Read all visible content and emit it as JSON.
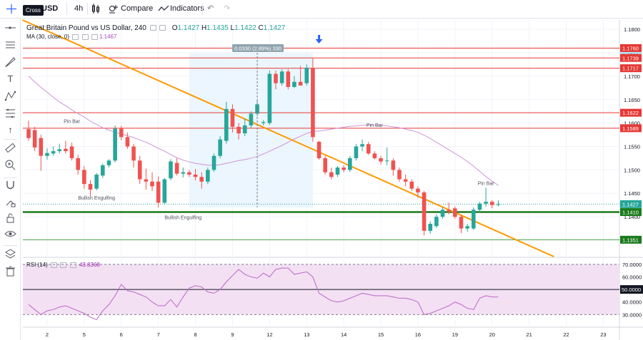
{
  "topbar": {
    "tooltip": "Cross",
    "symbol": "USD",
    "interval": "4h",
    "compare_label": "Compare",
    "indicators_label": "Indicators"
  },
  "legend": {
    "title": "Great Britain Pound vs US Dollar, 240",
    "o_label": "O",
    "o": "1.1427",
    "h_label": "H",
    "h": "1.1435",
    "l_label": "L",
    "l": "1.1422",
    "c_label": "C",
    "c": "1.1427",
    "ma_label": "MA (30, close, 0)",
    "ma_value": "1.1467",
    "rsi_label": "RSI (14)",
    "rsi_value": "43.8368"
  },
  "colors": {
    "up": "#26a69a",
    "down": "#ef5350",
    "ma": "#ce93d8",
    "trendline": "#ff9800",
    "resistance": "#e53935",
    "support": "#1b7a1b",
    "rsi_line": "#ba68c8",
    "rsi_fill": "#f3e0f3",
    "range_box": "#e3f2fd"
  },
  "chart_data": {
    "type": "candlestick",
    "ylim": [
      1.1315,
      1.182
    ],
    "price_ticks": [
      "1.1800",
      "1.1750",
      "1.1700",
      "1.1650",
      "1.1600",
      "1.1550",
      "1.1500",
      "1.1450",
      "1.1400"
    ],
    "date_ticks": [
      {
        "label": "2",
        "bar": 3
      },
      {
        "label": "5",
        "bar": 9
      },
      {
        "label": "6",
        "bar": 15
      },
      {
        "label": "7",
        "bar": 21
      },
      {
        "label": "8",
        "bar": 27
      },
      {
        "label": "9",
        "bar": 33
      },
      {
        "label": "12",
        "bar": 39
      },
      {
        "label": "13",
        "bar": 45
      },
      {
        "label": "14",
        "bar": 51
      },
      {
        "label": "15",
        "bar": 57
      },
      {
        "label": "16",
        "bar": 63
      },
      {
        "label": "19",
        "bar": 69
      },
      {
        "label": "20",
        "bar": 75
      },
      {
        "label": "21",
        "bar": 81
      },
      {
        "label": "22",
        "bar": 87
      },
      {
        "label": "23",
        "bar": 93
      }
    ],
    "candles": [
      {
        "o": 1.1587,
        "h": 1.1605,
        "l": 1.1562,
        "c": 1.1568
      },
      {
        "o": 1.1585,
        "h": 1.1592,
        "l": 1.154,
        "c": 1.1548
      },
      {
        "o": 1.1568,
        "h": 1.1575,
        "l": 1.1498,
        "c": 1.153
      },
      {
        "o": 1.153,
        "h": 1.1546,
        "l": 1.1522,
        "c": 1.1536
      },
      {
        "o": 1.1535,
        "h": 1.155,
        "l": 1.153,
        "c": 1.154
      },
      {
        "o": 1.154,
        "h": 1.1556,
        "l": 1.1535,
        "c": 1.1544
      },
      {
        "o": 1.1545,
        "h": 1.1562,
        "l": 1.1535,
        "c": 1.154
      },
      {
        "o": 1.155,
        "h": 1.1558,
        "l": 1.152,
        "c": 1.1525
      },
      {
        "o": 1.1525,
        "h": 1.1532,
        "l": 1.149,
        "c": 1.15
      },
      {
        "o": 1.15,
        "h": 1.1508,
        "l": 1.146,
        "c": 1.147
      },
      {
        "o": 1.147,
        "h": 1.1478,
        "l": 1.1445,
        "c": 1.1458
      },
      {
        "o": 1.146,
        "h": 1.1493,
        "l": 1.1456,
        "c": 1.149
      },
      {
        "o": 1.1488,
        "h": 1.1513,
        "l": 1.1483,
        "c": 1.151
      },
      {
        "o": 1.151,
        "h": 1.1523,
        "l": 1.1505,
        "c": 1.152
      },
      {
        "o": 1.152,
        "h": 1.1595,
        "l": 1.1516,
        "c": 1.1588
      },
      {
        "o": 1.1588,
        "h": 1.1594,
        "l": 1.1563,
        "c": 1.157
      },
      {
        "o": 1.157,
        "h": 1.158,
        "l": 1.1545,
        "c": 1.155
      },
      {
        "o": 1.155,
        "h": 1.1556,
        "l": 1.1505,
        "c": 1.152
      },
      {
        "o": 1.152,
        "h": 1.153,
        "l": 1.147,
        "c": 1.148
      },
      {
        "o": 1.148,
        "h": 1.1503,
        "l": 1.1458,
        "c": 1.1475
      },
      {
        "o": 1.1475,
        "h": 1.1495,
        "l": 1.1455,
        "c": 1.1465
      },
      {
        "o": 1.1475,
        "h": 1.1486,
        "l": 1.142,
        "c": 1.143
      },
      {
        "o": 1.143,
        "h": 1.1483,
        "l": 1.1426,
        "c": 1.148
      },
      {
        "o": 1.1482,
        "h": 1.1523,
        "l": 1.1478,
        "c": 1.1518
      },
      {
        "o": 1.1515,
        "h": 1.1525,
        "l": 1.1488,
        "c": 1.1492
      },
      {
        "o": 1.1492,
        "h": 1.1505,
        "l": 1.1484,
        "c": 1.1495
      },
      {
        "o": 1.1495,
        "h": 1.15,
        "l": 1.1485,
        "c": 1.149
      },
      {
        "o": 1.149,
        "h": 1.1502,
        "l": 1.1478,
        "c": 1.1485
      },
      {
        "o": 1.1485,
        "h": 1.1495,
        "l": 1.146,
        "c": 1.1475
      },
      {
        "o": 1.1475,
        "h": 1.1505,
        "l": 1.147,
        "c": 1.15
      },
      {
        "o": 1.15,
        "h": 1.1535,
        "l": 1.1496,
        "c": 1.153
      },
      {
        "o": 1.153,
        "h": 1.1572,
        "l": 1.1525,
        "c": 1.1565
      },
      {
        "o": 1.1562,
        "h": 1.1645,
        "l": 1.1556,
        "c": 1.163
      },
      {
        "o": 1.163,
        "h": 1.164,
        "l": 1.158,
        "c": 1.1592
      },
      {
        "o": 1.1592,
        "h": 1.16,
        "l": 1.1565,
        "c": 1.1578
      },
      {
        "o": 1.1578,
        "h": 1.161,
        "l": 1.1572,
        "c": 1.1595
      },
      {
        "o": 1.1595,
        "h": 1.1625,
        "l": 1.159,
        "c": 1.162
      },
      {
        "o": 1.162,
        "h": 1.1648,
        "l": 1.1615,
        "c": 1.164
      },
      {
        "o": 1.16,
        "h": 1.1606,
        "l": 1.1595,
        "c": 1.1602
      },
      {
        "o": 1.16,
        "h": 1.1712,
        "l": 1.1596,
        "c": 1.1705
      },
      {
        "o": 1.1705,
        "h": 1.1712,
        "l": 1.1672,
        "c": 1.1685
      },
      {
        "o": 1.1685,
        "h": 1.1715,
        "l": 1.168,
        "c": 1.171
      },
      {
        "o": 1.171,
        "h": 1.1715,
        "l": 1.1672,
        "c": 1.1677
      },
      {
        "o": 1.1677,
        "h": 1.17,
        "l": 1.1675,
        "c": 1.1688
      },
      {
        "o": 1.1688,
        "h": 1.1722,
        "l": 1.168,
        "c": 1.168
      },
      {
        "o": 1.1685,
        "h": 1.1725,
        "l": 1.168,
        "c": 1.1718
      },
      {
        "o": 1.1718,
        "h": 1.1738,
        "l": 1.156,
        "c": 1.157
      },
      {
        "o": 1.156,
        "h": 1.1562,
        "l": 1.1522,
        "c": 1.1525
      },
      {
        "o": 1.1525,
        "h": 1.153,
        "l": 1.149,
        "c": 1.1495
      },
      {
        "o": 1.1495,
        "h": 1.1505,
        "l": 1.148,
        "c": 1.1485
      },
      {
        "o": 1.149,
        "h": 1.1508,
        "l": 1.1485,
        "c": 1.1505
      },
      {
        "o": 1.1505,
        "h": 1.151,
        "l": 1.1495,
        "c": 1.15
      },
      {
        "o": 1.15,
        "h": 1.153,
        "l": 1.1496,
        "c": 1.1525
      },
      {
        "o": 1.1525,
        "h": 1.1555,
        "l": 1.152,
        "c": 1.155
      },
      {
        "o": 1.155,
        "h": 1.1565,
        "l": 1.154,
        "c": 1.1555
      },
      {
        "o": 1.1555,
        "h": 1.156,
        "l": 1.1532,
        "c": 1.1535
      },
      {
        "o": 1.1535,
        "h": 1.154,
        "l": 1.1522,
        "c": 1.1525
      },
      {
        "o": 1.1525,
        "h": 1.153,
        "l": 1.1512,
        "c": 1.1518
      },
      {
        "o": 1.152,
        "h": 1.1548,
        "l": 1.151,
        "c": 1.152
      },
      {
        "o": 1.152,
        "h": 1.1525,
        "l": 1.1488,
        "c": 1.15
      },
      {
        "o": 1.15,
        "h": 1.1505,
        "l": 1.1475,
        "c": 1.148
      },
      {
        "o": 1.148,
        "h": 1.149,
        "l": 1.1465,
        "c": 1.1475
      },
      {
        "o": 1.1475,
        "h": 1.148,
        "l": 1.1455,
        "c": 1.146
      },
      {
        "o": 1.146,
        "h": 1.1465,
        "l": 1.144,
        "c": 1.1452
      },
      {
        "o": 1.1452,
        "h": 1.1455,
        "l": 1.136,
        "c": 1.137
      },
      {
        "o": 1.137,
        "h": 1.139,
        "l": 1.1364,
        "c": 1.1385
      },
      {
        "o": 1.138,
        "h": 1.1405,
        "l": 1.1376,
        "c": 1.14
      },
      {
        "o": 1.14,
        "h": 1.142,
        "l": 1.1396,
        "c": 1.1415
      },
      {
        "o": 1.1415,
        "h": 1.143,
        "l": 1.1405,
        "c": 1.141
      },
      {
        "o": 1.1418,
        "h": 1.1422,
        "l": 1.1396,
        "c": 1.14
      },
      {
        "o": 1.14,
        "h": 1.1405,
        "l": 1.1365,
        "c": 1.1375
      },
      {
        "o": 1.1375,
        "h": 1.1385,
        "l": 1.1368,
        "c": 1.138
      },
      {
        "o": 1.1375,
        "h": 1.142,
        "l": 1.1372,
        "c": 1.1415
      },
      {
        "o": 1.1415,
        "h": 1.1432,
        "l": 1.141,
        "c": 1.1428
      },
      {
        "o": 1.1428,
        "h": 1.1462,
        "l": 1.1422,
        "c": 1.1432
      },
      {
        "o": 1.1432,
        "h": 1.1435,
        "l": 1.1418,
        "c": 1.1425
      },
      {
        "o": 1.1427,
        "h": 1.1435,
        "l": 1.1422,
        "c": 1.1427
      }
    ],
    "ma": [
      1.17,
      1.1688,
      1.1676,
      1.1666,
      1.1655,
      1.1645,
      1.1637,
      1.1628,
      1.162,
      1.1613,
      1.1604,
      1.1597,
      1.159,
      1.1585,
      1.158,
      1.1577,
      1.1573,
      1.1569,
      1.1564,
      1.1559,
      1.1553,
      1.1546,
      1.154,
      1.1533,
      1.1526,
      1.1521,
      1.1517,
      1.1514,
      1.1512,
      1.151,
      1.151,
      1.1511,
      1.1514,
      1.1517,
      1.152,
      1.1522,
      1.1525,
      1.1529,
      1.1534,
      1.154,
      1.1546,
      1.1552,
      1.1559,
      1.1566,
      1.1572,
      1.1578,
      1.1582,
      1.1583,
      1.1585,
      1.1587,
      1.1589,
      1.1591,
      1.1593,
      1.1594,
      1.1595,
      1.1596,
      1.1596,
      1.1595,
      1.1594,
      1.1592,
      1.159,
      1.1587,
      1.1584,
      1.158,
      1.1574,
      1.1567,
      1.1559,
      1.1551,
      1.1543,
      1.1535,
      1.1527,
      1.1518,
      1.1508,
      1.1497,
      1.1486,
      1.1476,
      1.1467
    ],
    "resistance_lines": [
      {
        "value": 1.176,
        "label": "1.1760"
      },
      {
        "value": 1.1739,
        "label": "1.1739"
      },
      {
        "value": 1.1717,
        "label": "1.1717"
      },
      {
        "value": 1.1622,
        "label": "1.1622"
      },
      {
        "value": 1.1589,
        "label": "1.1589"
      }
    ],
    "support_lines": [
      {
        "value": 1.141,
        "label": "1.1410",
        "thick": true
      },
      {
        "value": 1.1351,
        "label": "1.1351",
        "thick": false
      }
    ],
    "current_price": {
      "value": 1.1427,
      "label": "1.1427"
    },
    "alt_price_label": {
      "value": 1.176,
      "label": "1.1760"
    },
    "trendline": {
      "start": {
        "bar": -1,
        "price": 1.182
      },
      "end": {
        "bar": 85,
        "price": 1.1315
      }
    },
    "measure": {
      "start_bar": 26,
      "end_bar": 46,
      "from": 1.142,
      "to": 1.175,
      "dashed_bar": 37,
      "label": "0.0330 (2.89%) 330"
    },
    "arrow_bar": 47,
    "annotations": [
      {
        "text": "Pin Bar",
        "bar": 7,
        "price": 1.16
      },
      {
        "text": "Bullish Engulfing",
        "bar": 11,
        "price": 1.1437
      },
      {
        "text": "Bullish Engulfing",
        "bar": 25,
        "price": 1.1395
      },
      {
        "text": "Pin Bar",
        "bar": 56,
        "price": 1.1592
      },
      {
        "text": "Pin Bar",
        "bar": 74,
        "price": 1.1468
      }
    ],
    "rsi": {
      "ylim": [
        20,
        75
      ],
      "upper": 70,
      "middle": 50,
      "lower": 30,
      "ticks": [
        "70.0000",
        "60.0000",
        "50.0000",
        "40.0000",
        "30.0000"
      ],
      "middle_label": "50.0000",
      "values": [
        38,
        34,
        30,
        33,
        34,
        36,
        37,
        35,
        33,
        31,
        28,
        26,
        33,
        38,
        45,
        54,
        49,
        48,
        46,
        44,
        40,
        37,
        37,
        42,
        36,
        44,
        51,
        53,
        52,
        48,
        47,
        50,
        56,
        61,
        66,
        62,
        60,
        59,
        63,
        60,
        66,
        67,
        67,
        62,
        63,
        64,
        60,
        47,
        44,
        41,
        40,
        41,
        43,
        45,
        47,
        46,
        45,
        45,
        45,
        44,
        43,
        43,
        42,
        40,
        30,
        31,
        33,
        35,
        37,
        40,
        38,
        35,
        34,
        43,
        45,
        44,
        44
      ]
    }
  }
}
